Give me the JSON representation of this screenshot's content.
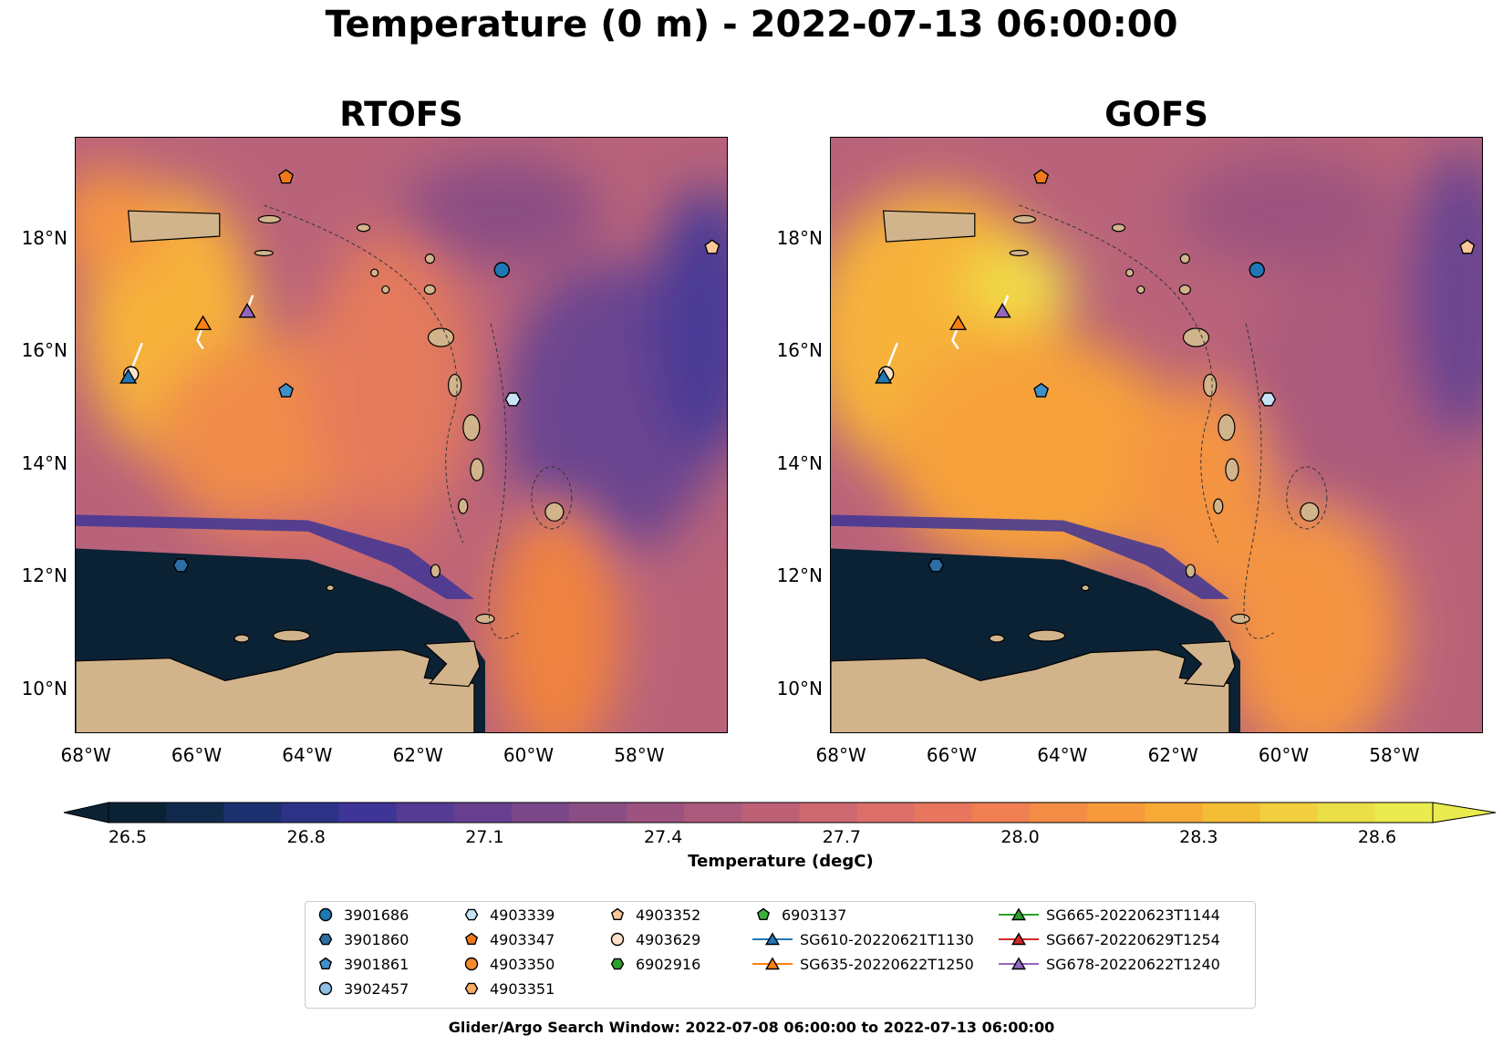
{
  "figure": {
    "title": "Temperature (0 m) - 2022-07-13 06:00:00",
    "footer": "Glider/Argo Search Window: 2022-07-08 06:00:00 to 2022-07-13 06:00:00"
  },
  "panels": [
    {
      "title": "RTOFS"
    },
    {
      "title": "GOFS"
    }
  ],
  "map_extent": {
    "lon": [
      -68.2,
      -56.4
    ],
    "lat": [
      9.2,
      19.8
    ]
  },
  "x_ticks": [
    "68°W",
    "66°W",
    "64°W",
    "62°W",
    "60°W",
    "58°W"
  ],
  "y_ticks": [
    "18°N",
    "16°N",
    "14°N",
    "12°N",
    "10°N"
  ],
  "colorbar": {
    "label": "Temperature (degC)",
    "ticks": [
      "26.5",
      "26.8",
      "27.1",
      "27.4",
      "27.7",
      "28.0",
      "28.3",
      "28.6"
    ],
    "range": [
      26.5,
      28.6
    ],
    "colors": [
      "#0b2235",
      "#112a4c",
      "#1c2f6e",
      "#2d3287",
      "#3e3596",
      "#553b94",
      "#683f8e",
      "#7a4789",
      "#8b4e84",
      "#9c537f",
      "#ac5a7b",
      "#bd6076",
      "#cd6870",
      "#dc6f69",
      "#e8765e",
      "#f07f52",
      "#f58c45",
      "#f79a3c",
      "#f8aa37",
      "#f4bd36",
      "#f1cf3e",
      "#eadf48",
      "#e9eb4f"
    ]
  },
  "colors": {
    "land": "#d2b48c",
    "ocean_mid": "#b9637a",
    "warm": "#f49443",
    "cold": "#0b2235",
    "glider_track": "#ffffff"
  },
  "legend": {
    "items": [
      {
        "label": "3901686",
        "marker": "circle",
        "color": "#1f77b4",
        "line": false
      },
      {
        "label": "3901860",
        "marker": "hexagon",
        "color": "#2c6ea6",
        "line": false
      },
      {
        "label": "3901861",
        "marker": "pentagon",
        "color": "#3f8fc9",
        "line": false
      },
      {
        "label": "3902457",
        "marker": "circle",
        "color": "#8bbfe3",
        "line": false
      },
      {
        "label": "4903339",
        "marker": "hexagon",
        "color": "#c7e4f6",
        "line": false
      },
      {
        "label": "4903347",
        "marker": "pentagon",
        "color": "#f07a1a",
        "line": false
      },
      {
        "label": "4903350",
        "marker": "circle",
        "color": "#f58a2c",
        "line": false
      },
      {
        "label": "4903351",
        "marker": "hexagon",
        "color": "#f9ad62",
        "line": false
      },
      {
        "label": "4903352",
        "marker": "pentagon",
        "color": "#fbc79a",
        "line": false
      },
      {
        "label": "4903629",
        "marker": "circle",
        "color": "#fde2c9",
        "line": false
      },
      {
        "label": "6902916",
        "marker": "hexagon",
        "color": "#2ca02c",
        "line": false
      },
      {
        "label": "6903137",
        "marker": "pentagon",
        "color": "#3ab03a",
        "line": false
      },
      {
        "label": "SG610-20220621T1130",
        "marker": "triangle",
        "color": "#1f77b4",
        "line": true
      },
      {
        "label": "SG635-20220622T1250",
        "marker": "triangle",
        "color": "#ff7f0e",
        "line": true
      },
      {
        "label": "SG665-20220623T1144",
        "marker": "triangle",
        "color": "#2ca02c",
        "line": true
      },
      {
        "label": "SG667-20220629T1254",
        "marker": "triangle",
        "color": "#d62728",
        "line": true
      },
      {
        "label": "SG678-20220622T1240",
        "marker": "triangle",
        "color": "#9467bd",
        "line": true
      }
    ]
  },
  "markers": [
    {
      "name": "3901686",
      "lon": -60.5,
      "lat": 17.45,
      "marker": "circle",
      "color": "#1f77b4"
    },
    {
      "name": "3901860",
      "lon": -66.3,
      "lat": 12.2,
      "marker": "hexagon",
      "color": "#2c6ea6"
    },
    {
      "name": "3901861",
      "lon": -64.4,
      "lat": 15.3,
      "marker": "pentagon",
      "color": "#3f8fc9"
    },
    {
      "name": "4903339",
      "lon": -60.3,
      "lat": 15.15,
      "marker": "hexagon",
      "color": "#c7e4f6"
    },
    {
      "name": "4903347",
      "lon": -64.4,
      "lat": 19.1,
      "marker": "pentagon",
      "color": "#f07a1a"
    },
    {
      "name": "4903352",
      "lon": -56.7,
      "lat": 17.85,
      "marker": "pentagon",
      "color": "#fbc79a"
    },
    {
      "name": "4903629",
      "lon": -67.2,
      "lat": 15.6,
      "marker": "circle",
      "color": "#fde2c9"
    },
    {
      "name": "SG610-20220621T1130",
      "lon": -67.25,
      "lat": 15.55,
      "marker": "triangle",
      "color": "#1f77b4"
    },
    {
      "name": "SG635-20220622T1250",
      "lon": -65.9,
      "lat": 16.5,
      "marker": "triangle",
      "color": "#ff7f0e"
    },
    {
      "name": "SG678-20220622T1240",
      "lon": -65.1,
      "lat": 16.72,
      "marker": "triangle",
      "color": "#9467bd"
    }
  ]
}
